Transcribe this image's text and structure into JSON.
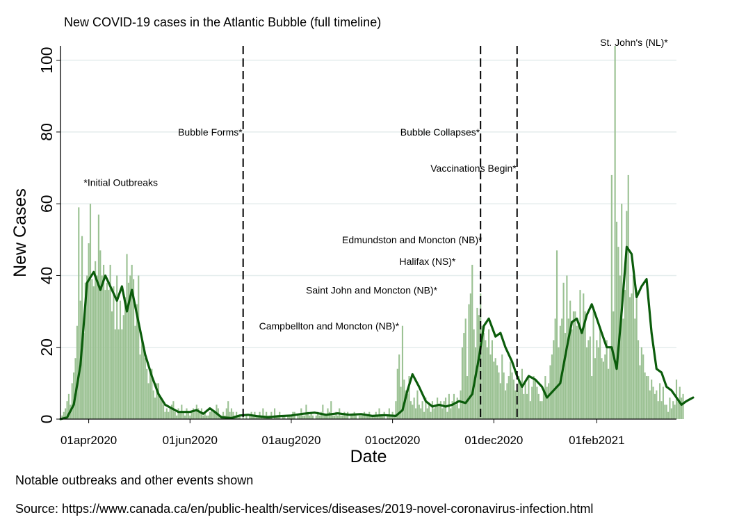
{
  "chart_data": {
    "type": "bar",
    "title": "New COVID-19 cases in the Atlantic Bubble (full timeline)",
    "xlabel": "Date",
    "ylabel": "New Cases",
    "ylim": [
      0,
      104
    ],
    "xlim": [
      "2020-03-15",
      "2021-03-21"
    ],
    "grid": true,
    "yticks": [
      0,
      20,
      40,
      60,
      80,
      100
    ],
    "xticks": [
      {
        "date": "2020-04-01",
        "label": "01apr2020"
      },
      {
        "date": "2020-06-01",
        "label": "01jun2020"
      },
      {
        "date": "2020-08-01",
        "label": "01aug2020"
      },
      {
        "date": "2020-10-01",
        "label": "01oct2020"
      },
      {
        "date": "2020-12-01",
        "label": "01dec2020"
      },
      {
        "date": "2021-02-01",
        "label": "01feb2021"
      }
    ],
    "series": [
      {
        "kind": "bar",
        "color": "#9cc294",
        "start_date": "2020-03-16",
        "values": [
          1,
          2,
          3,
          5,
          7,
          4,
          10,
          13,
          17,
          26,
          59,
          33,
          51,
          24,
          38,
          40,
          49,
          60,
          39,
          37,
          44,
          40,
          57,
          47,
          40,
          43,
          36,
          38,
          36,
          43,
          30,
          37,
          25,
          40,
          25,
          33,
          25,
          29,
          34,
          46,
          38,
          40,
          43,
          39,
          26,
          32,
          40,
          18,
          23,
          20,
          17,
          14,
          10,
          13,
          14,
          8,
          6,
          10,
          10,
          6,
          5,
          4,
          2,
          3,
          2,
          3,
          4,
          5,
          2,
          1,
          3,
          2,
          4,
          2,
          1,
          3,
          2,
          1,
          2,
          3,
          2,
          4,
          3,
          2,
          3,
          1,
          2,
          1,
          1,
          2,
          3,
          2,
          2,
          4,
          3,
          1,
          1,
          2,
          1,
          3,
          5,
          2,
          3,
          2,
          1,
          2,
          1,
          1,
          0,
          1,
          0,
          1,
          0,
          1,
          2,
          1,
          2,
          1,
          1,
          2,
          1,
          3,
          1,
          2,
          1,
          1,
          2,
          0,
          3,
          1,
          1,
          2,
          0,
          1,
          1,
          0,
          1,
          1,
          1,
          2,
          2,
          0,
          1,
          1,
          3,
          1,
          1,
          4,
          2,
          1,
          2,
          1,
          0,
          1,
          2,
          1,
          2,
          4,
          1,
          1,
          3,
          2,
          5,
          1,
          1,
          2,
          1,
          3,
          1,
          1,
          2,
          1,
          2,
          0,
          1,
          1,
          2,
          1,
          0,
          1,
          1,
          1,
          2,
          1,
          1,
          2,
          1,
          1,
          1,
          2,
          1,
          3,
          1,
          1,
          2,
          0,
          1,
          3,
          1,
          2,
          1,
          5,
          14,
          18,
          9,
          26,
          11,
          8,
          7,
          12,
          5,
          4,
          6,
          3,
          8,
          4,
          3,
          5,
          2,
          6,
          3,
          4,
          2,
          5,
          3,
          4,
          6,
          4,
          5,
          3,
          5,
          6,
          2,
          7,
          3,
          5,
          7,
          4,
          6,
          3,
          8,
          20,
          24,
          28,
          12,
          32,
          35,
          43,
          25,
          20,
          31,
          29,
          35,
          26,
          24,
          22,
          20,
          25,
          18,
          22,
          16,
          17,
          15,
          13,
          10,
          18,
          13,
          8,
          10,
          12,
          16,
          13,
          11,
          8,
          8,
          12,
          10,
          14,
          7,
          10,
          7,
          12,
          5,
          9,
          12,
          11,
          9,
          7,
          5,
          5,
          8,
          12,
          9,
          10,
          15,
          18,
          22,
          28,
          47,
          20,
          26,
          28,
          38,
          24,
          40,
          28,
          33,
          25,
          30,
          30,
          26,
          27,
          36,
          24,
          35,
          30,
          20,
          22,
          23,
          12,
          30,
          17,
          22,
          20,
          25,
          17,
          16,
          18,
          22,
          14,
          20,
          68,
          30,
          104,
          55,
          48,
          40,
          60,
          28,
          36,
          58,
          68,
          34,
          35,
          40,
          28,
          36,
          22,
          15,
          20,
          18,
          13,
          12,
          12,
          8,
          11,
          9,
          7,
          8,
          5,
          10,
          5,
          9,
          4,
          4,
          2,
          6,
          3,
          5,
          4,
          11,
          5,
          9,
          6,
          7
        ]
      },
      {
        "kind": "line",
        "color": "#0b5c0b",
        "points": [
          [
            "2020-03-15",
            0
          ],
          [
            "2020-03-19",
            0.5
          ],
          [
            "2020-03-23",
            4
          ],
          [
            "2020-03-27",
            15
          ],
          [
            "2020-03-31",
            38
          ],
          [
            "2020-04-04",
            41
          ],
          [
            "2020-04-08",
            36
          ],
          [
            "2020-04-11",
            40
          ],
          [
            "2020-04-15",
            36
          ],
          [
            "2020-04-18",
            33
          ],
          [
            "2020-04-21",
            37
          ],
          [
            "2020-04-24",
            30
          ],
          [
            "2020-04-27",
            36
          ],
          [
            "2020-05-01",
            27
          ],
          [
            "2020-05-05",
            18
          ],
          [
            "2020-05-09",
            12
          ],
          [
            "2020-05-13",
            7
          ],
          [
            "2020-05-17",
            4
          ],
          [
            "2020-05-21",
            3
          ],
          [
            "2020-05-25",
            2
          ],
          [
            "2020-06-01",
            2
          ],
          [
            "2020-06-05",
            2.5
          ],
          [
            "2020-06-09",
            1.5
          ],
          [
            "2020-06-13",
            3
          ],
          [
            "2020-06-16",
            2
          ],
          [
            "2020-06-20",
            0.5
          ],
          [
            "2020-06-26",
            0.3
          ],
          [
            "2020-07-01",
            1
          ],
          [
            "2020-07-06",
            1.2
          ],
          [
            "2020-07-12",
            0.8
          ],
          [
            "2020-07-18",
            0.5
          ],
          [
            "2020-07-24",
            0.8
          ],
          [
            "2020-08-01",
            1
          ],
          [
            "2020-08-08",
            1.5
          ],
          [
            "2020-08-15",
            1.8
          ],
          [
            "2020-08-22",
            1.2
          ],
          [
            "2020-08-29",
            1.6
          ],
          [
            "2020-09-05",
            1.2
          ],
          [
            "2020-09-12",
            1.4
          ],
          [
            "2020-09-19",
            0.9
          ],
          [
            "2020-09-26",
            1.1
          ],
          [
            "2020-10-03",
            0.9
          ],
          [
            "2020-10-07",
            2.5
          ],
          [
            "2020-10-10",
            8
          ],
          [
            "2020-10-13",
            12.5
          ],
          [
            "2020-10-17",
            9
          ],
          [
            "2020-10-21",
            5
          ],
          [
            "2020-10-25",
            3.5
          ],
          [
            "2020-10-29",
            4
          ],
          [
            "2020-11-02",
            3.5
          ],
          [
            "2020-11-06",
            4
          ],
          [
            "2020-11-10",
            5
          ],
          [
            "2020-11-14",
            4.5
          ],
          [
            "2020-11-18",
            7
          ],
          [
            "2020-11-22",
            17
          ],
          [
            "2020-11-25",
            26
          ],
          [
            "2020-11-28",
            28
          ],
          [
            "2020-12-02",
            23
          ],
          [
            "2020-12-05",
            24
          ],
          [
            "2020-12-08",
            20
          ],
          [
            "2020-12-12",
            16
          ],
          [
            "2020-12-15",
            12
          ],
          [
            "2020-12-18",
            9
          ],
          [
            "2020-12-22",
            12
          ],
          [
            "2020-12-26",
            11
          ],
          [
            "2020-12-30",
            9
          ],
          [
            "2021-01-02",
            6
          ],
          [
            "2021-01-06",
            8
          ],
          [
            "2021-01-10",
            10
          ],
          [
            "2021-01-14",
            20
          ],
          [
            "2021-01-17",
            27
          ],
          [
            "2021-01-20",
            28
          ],
          [
            "2021-01-23",
            24
          ],
          [
            "2021-01-26",
            29
          ],
          [
            "2021-01-29",
            32
          ],
          [
            "2021-02-01",
            28
          ],
          [
            "2021-02-04",
            24
          ],
          [
            "2021-02-07",
            20
          ],
          [
            "2021-02-10",
            20
          ],
          [
            "2021-02-13",
            14
          ],
          [
            "2021-02-16",
            30
          ],
          [
            "2021-02-19",
            48
          ],
          [
            "2021-02-22",
            46
          ],
          [
            "2021-02-25",
            34
          ],
          [
            "2021-02-28",
            37
          ],
          [
            "2021-03-03",
            39
          ],
          [
            "2021-03-06",
            24
          ],
          [
            "2021-03-09",
            14
          ],
          [
            "2021-03-12",
            13
          ],
          [
            "2021-03-15",
            9
          ],
          [
            "2021-03-18",
            8
          ],
          [
            "2021-03-21",
            6
          ],
          [
            "2021-03-24",
            4
          ],
          [
            "2021-03-27",
            5
          ],
          [
            "2021-03-31",
            6
          ]
        ]
      }
    ],
    "event_lines": [
      {
        "date": "2020-07-03",
        "label": "Bubble Forms*"
      },
      {
        "date": "2020-11-23",
        "label": "Bubble Collapses*"
      },
      {
        "date": "2020-12-15",
        "label": "Vaccinations Begin*"
      }
    ],
    "annotations": [
      {
        "text": "*Initial Outbreaks",
        "date": "2020-03-29",
        "value": 65
      },
      {
        "text": "Campbellton and Moncton (NB)*",
        "date": "2020-10-05",
        "value": 25
      },
      {
        "text": "Saint John and Moncton (NB)*",
        "date": "2020-10-28",
        "value": 35
      },
      {
        "text": "Halifax (NS)*",
        "date": "2020-11-08",
        "value": 43
      },
      {
        "text": "Edmundston and Moncton (NB)*",
        "date": "2020-11-24",
        "value": 49
      },
      {
        "text": "St. John's (NL)*",
        "date": "2021-02-03",
        "value": 104
      }
    ]
  },
  "notes": {
    "line1": "Notable outbreaks and other events shown",
    "line2": "Source: https://www.canada.ca/en/public-health/services/diseases/2019-novel-coronavirus-infection.html"
  }
}
